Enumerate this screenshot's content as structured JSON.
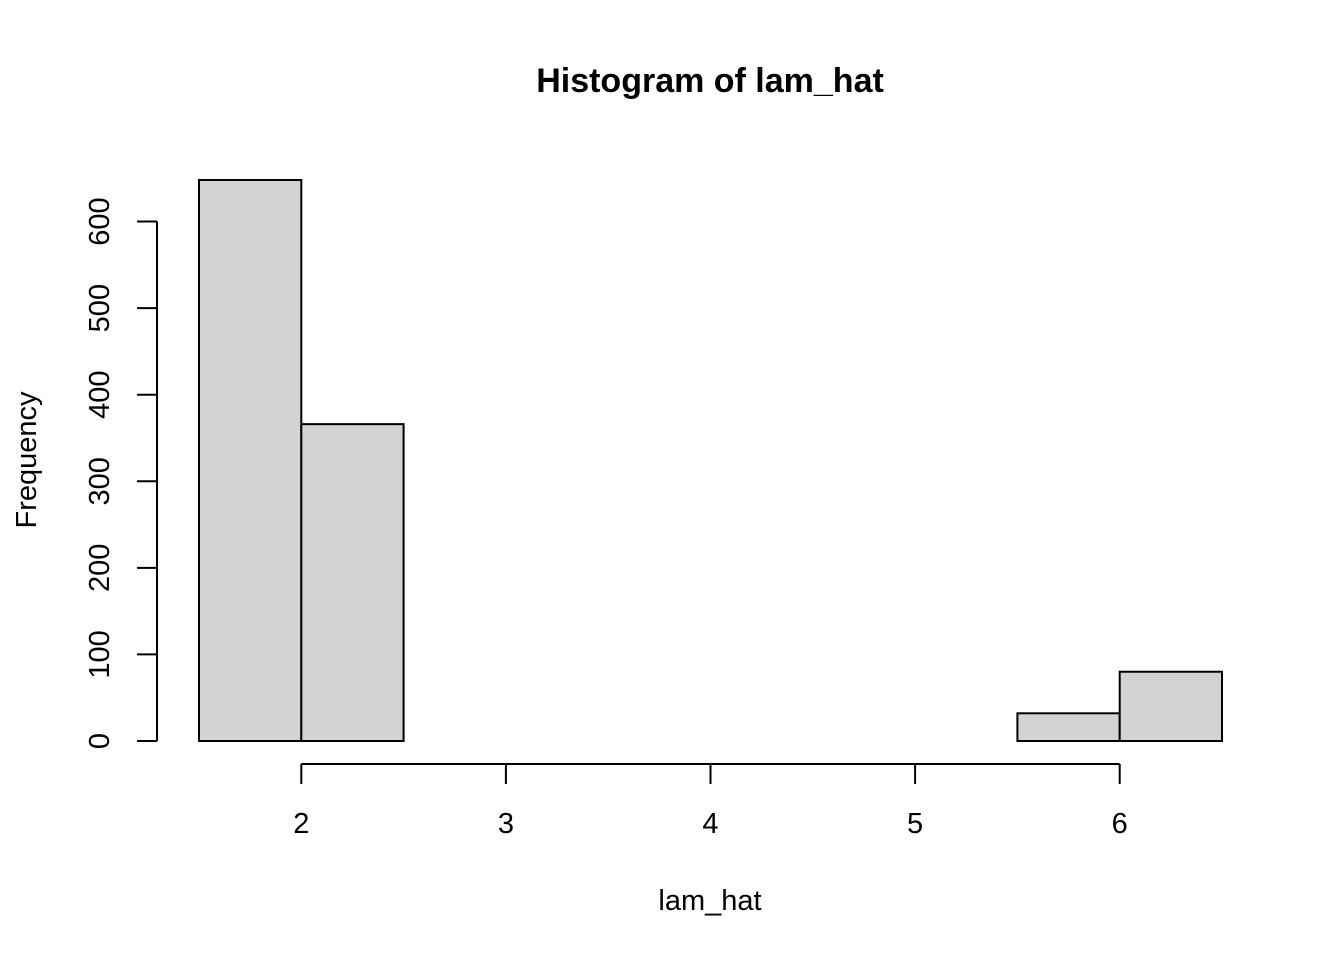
{
  "chart_data": {
    "type": "bar",
    "title": "Histogram of lam_hat",
    "xlabel": "lam_hat",
    "ylabel": "Frequency",
    "bins": [
      {
        "start": 1.5,
        "end": 2.0,
        "value": 648
      },
      {
        "start": 2.0,
        "end": 2.5,
        "value": 366
      },
      {
        "start": 2.5,
        "end": 3.0,
        "value": 0
      },
      {
        "start": 3.0,
        "end": 3.5,
        "value": 0
      },
      {
        "start": 3.5,
        "end": 4.0,
        "value": 0
      },
      {
        "start": 4.0,
        "end": 4.5,
        "value": 0
      },
      {
        "start": 4.5,
        "end": 5.0,
        "value": 0
      },
      {
        "start": 5.0,
        "end": 5.5,
        "value": 0
      },
      {
        "start": 5.5,
        "end": 6.0,
        "value": 32
      },
      {
        "start": 6.0,
        "end": 6.5,
        "value": 80
      }
    ],
    "x_ticks": [
      2,
      3,
      4,
      5,
      6
    ],
    "y_ticks": [
      0,
      100,
      200,
      300,
      400,
      500,
      600
    ],
    "xlim": [
      1.5,
      6.5
    ],
    "ylim": [
      0,
      648
    ],
    "grid": false,
    "colors": {
      "bar_fill": "#d3d3d3",
      "bar_stroke": "#000000"
    }
  }
}
